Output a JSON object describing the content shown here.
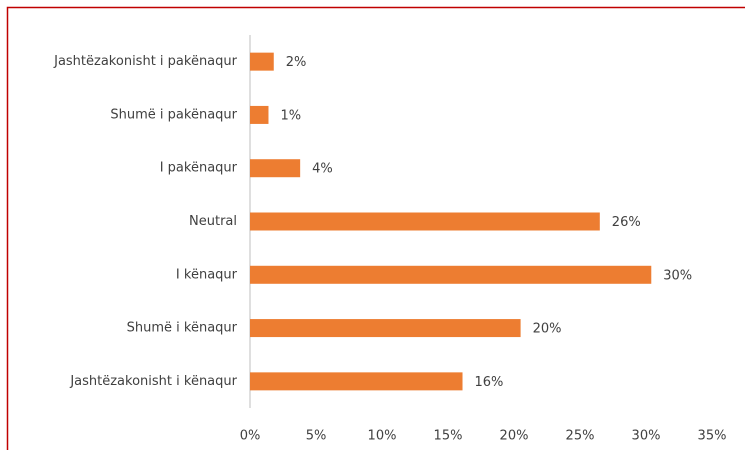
{
  "chart_data": {
    "type": "bar",
    "orientation": "horizontal",
    "categories": [
      "Jashtëzakonisht i pakënaqur",
      "Shumë i pakënaqur",
      "I pakënaqur",
      "Neutral",
      "I kënaqur",
      "Shumë i kënaqur",
      "Jashtëzakonisht i kënaqur"
    ],
    "values": [
      1.8,
      1.4,
      3.8,
      26.5,
      30.4,
      20.5,
      16.1
    ],
    "value_labels": [
      "2%",
      "1%",
      "4%",
      "26%",
      "30%",
      "20%",
      "16%"
    ],
    "color": "#ed7d31",
    "xlim": [
      0,
      35
    ],
    "xticks": [
      {
        "value": 0,
        "label": "0%"
      },
      {
        "value": 5,
        "label": "5%"
      },
      {
        "value": 10,
        "label": "10%"
      },
      {
        "value": 15,
        "label": "15%"
      },
      {
        "value": 20,
        "label": "20%"
      },
      {
        "value": 25,
        "label": "25%"
      },
      {
        "value": 30,
        "label": "30%"
      },
      {
        "value": 35,
        "label": "35%"
      }
    ],
    "grid": false
  }
}
